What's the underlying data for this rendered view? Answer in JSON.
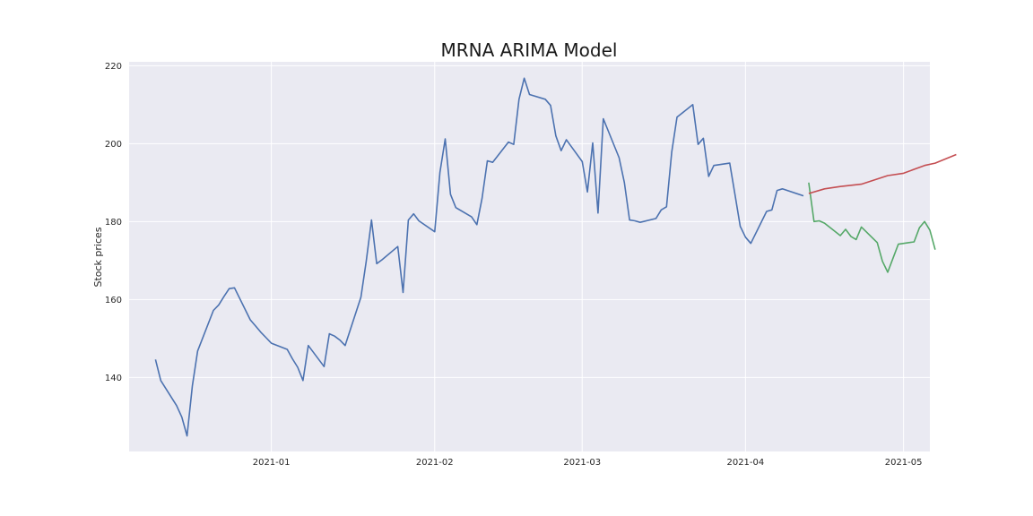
{
  "chart_data": {
    "type": "line",
    "title": "MRNA ARIMA Model",
    "xlabel": "",
    "ylabel": "Stock prices",
    "xlim": [
      "2020-12-05",
      "2021-05-06"
    ],
    "ylim": [
      121,
      221
    ],
    "x_ticks": [
      "2021-01",
      "2021-02",
      "2021-03",
      "2021-04",
      "2021-05"
    ],
    "y_ticks": [
      140,
      160,
      180,
      200,
      220
    ],
    "grid": true,
    "legend": "none",
    "background": "#eaeaf2",
    "series": [
      {
        "color": "#4c72b0",
        "points": [
          [
            "2020-12-10",
            144.6
          ],
          [
            "2020-12-11",
            139.2
          ],
          [
            "2020-12-14",
            132.8
          ],
          [
            "2020-12-15",
            129.8
          ],
          [
            "2020-12-16",
            125.0
          ],
          [
            "2020-12-17",
            137.8
          ],
          [
            "2020-12-18",
            146.8
          ],
          [
            "2020-12-21",
            157.2
          ],
          [
            "2020-12-22",
            158.6
          ],
          [
            "2020-12-23",
            160.8
          ],
          [
            "2020-12-24",
            162.8
          ],
          [
            "2020-12-25",
            163.0
          ],
          [
            "2020-12-28",
            154.8
          ],
          [
            "2020-12-29",
            153.2
          ],
          [
            "2020-12-30",
            151.6
          ],
          [
            "2020-12-31",
            150.2
          ],
          [
            "2021-01-01",
            148.8
          ],
          [
            "2021-01-04",
            147.2
          ],
          [
            "2021-01-05",
            144.8
          ],
          [
            "2021-01-06",
            142.6
          ],
          [
            "2021-01-07",
            139.2
          ],
          [
            "2021-01-08",
            148.2
          ],
          [
            "2021-01-11",
            142.8
          ],
          [
            "2021-01-12",
            151.2
          ],
          [
            "2021-01-13",
            150.6
          ],
          [
            "2021-01-14",
            149.6
          ],
          [
            "2021-01-15",
            148.2
          ],
          [
            "2021-01-18",
            160.6
          ],
          [
            "2021-01-19",
            169.8
          ],
          [
            "2021-01-20",
            180.4
          ],
          [
            "2021-01-21",
            169.2
          ],
          [
            "2021-01-22",
            170.2
          ],
          [
            "2021-01-25",
            173.6
          ],
          [
            "2021-01-26",
            161.8
          ],
          [
            "2021-01-27",
            180.4
          ],
          [
            "2021-01-28",
            182.0
          ],
          [
            "2021-01-29",
            180.2
          ],
          [
            "2021-02-01",
            177.4
          ],
          [
            "2021-02-02",
            192.6
          ],
          [
            "2021-02-03",
            201.2
          ],
          [
            "2021-02-04",
            187.0
          ],
          [
            "2021-02-05",
            183.6
          ],
          [
            "2021-02-08",
            181.2
          ],
          [
            "2021-02-09",
            179.2
          ],
          [
            "2021-02-10",
            186.0
          ],
          [
            "2021-02-11",
            195.6
          ],
          [
            "2021-02-12",
            195.2
          ],
          [
            "2021-02-15",
            200.4
          ],
          [
            "2021-02-16",
            199.8
          ],
          [
            "2021-02-17",
            211.4
          ],
          [
            "2021-02-18",
            216.8
          ],
          [
            "2021-02-19",
            212.6
          ],
          [
            "2021-02-22",
            211.4
          ],
          [
            "2021-02-23",
            209.8
          ],
          [
            "2021-02-24",
            202.0
          ],
          [
            "2021-02-25",
            198.2
          ],
          [
            "2021-02-26",
            201.0
          ],
          [
            "2021-03-01",
            195.4
          ],
          [
            "2021-03-02",
            187.6
          ],
          [
            "2021-03-03",
            200.2
          ],
          [
            "2021-03-04",
            182.2
          ],
          [
            "2021-03-05",
            206.4
          ],
          [
            "2021-03-08",
            196.4
          ],
          [
            "2021-03-09",
            190.0
          ],
          [
            "2021-03-10",
            180.4
          ],
          [
            "2021-03-11",
            180.2
          ],
          [
            "2021-03-12",
            179.8
          ],
          [
            "2021-03-15",
            180.8
          ],
          [
            "2021-03-16",
            183.0
          ],
          [
            "2021-03-17",
            183.8
          ],
          [
            "2021-03-18",
            197.8
          ],
          [
            "2021-03-19",
            206.8
          ],
          [
            "2021-03-22",
            210.0
          ],
          [
            "2021-03-23",
            199.8
          ],
          [
            "2021-03-24",
            201.4
          ],
          [
            "2021-03-25",
            191.6
          ],
          [
            "2021-03-26",
            194.4
          ],
          [
            "2021-03-29",
            195.0
          ],
          [
            "2021-03-30",
            187.0
          ],
          [
            "2021-03-31",
            178.8
          ],
          [
            "2021-04-01",
            176.0
          ],
          [
            "2021-04-02",
            174.4
          ],
          [
            "2021-04-05",
            182.6
          ],
          [
            "2021-04-06",
            183.0
          ],
          [
            "2021-04-07",
            188.0
          ],
          [
            "2021-04-08",
            188.4
          ],
          [
            "2021-04-12",
            186.6
          ]
        ]
      },
      {
        "color": "#55a868",
        "points": [
          [
            "2021-04-13",
            190.0
          ],
          [
            "2021-04-14",
            180.0
          ],
          [
            "2021-04-15",
            180.2
          ],
          [
            "2021-04-16",
            179.6
          ],
          [
            "2021-04-19",
            176.4
          ],
          [
            "2021-04-20",
            178.0
          ],
          [
            "2021-04-21",
            176.2
          ],
          [
            "2021-04-22",
            175.4
          ],
          [
            "2021-04-23",
            178.6
          ],
          [
            "2021-04-26",
            174.6
          ],
          [
            "2021-04-27",
            169.8
          ],
          [
            "2021-04-28",
            167.0
          ],
          [
            "2021-04-29",
            170.6
          ],
          [
            "2021-04-30",
            174.2
          ],
          [
            "2021-05-03",
            174.8
          ],
          [
            "2021-05-04",
            178.4
          ],
          [
            "2021-05-05",
            180.0
          ],
          [
            "2021-05-06",
            177.8
          ],
          [
            "2021-05-07",
            172.8
          ]
        ]
      },
      {
        "color": "#c44e52",
        "points": [
          [
            "2021-04-13",
            187.2
          ],
          [
            "2021-04-16",
            188.4
          ],
          [
            "2021-04-19",
            189.0
          ],
          [
            "2021-04-23",
            189.6
          ],
          [
            "2021-04-28",
            191.8
          ],
          [
            "2021-05-01",
            192.4
          ],
          [
            "2021-05-05",
            194.4
          ],
          [
            "2021-05-07",
            195.0
          ],
          [
            "2021-05-11",
            197.2
          ]
        ]
      }
    ]
  }
}
